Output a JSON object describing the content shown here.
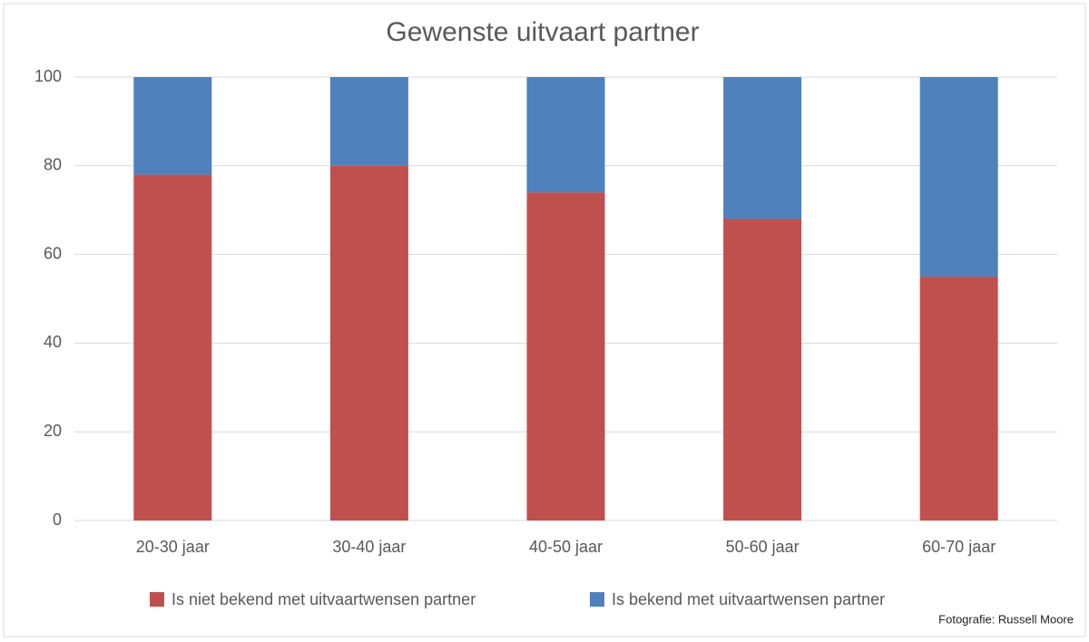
{
  "chart_data": {
    "type": "stacked_bar",
    "title": "Gewenste uitvaart partner",
    "categories": [
      "20-30 jaar",
      "30-40 jaar",
      "40-50 jaar",
      "50-60 jaar",
      "60-70 jaar"
    ],
    "series": [
      {
        "name": "Is niet bekend met uitvaartwensen partner",
        "color": "#c0504d",
        "values": [
          78,
          80,
          74,
          68,
          55
        ]
      },
      {
        "name": "Is bekend met uitvaartwensen partner",
        "color": "#4f81bd",
        "values": [
          22,
          20,
          26,
          32,
          45
        ]
      }
    ],
    "ylim": [
      0,
      100
    ],
    "yticks": [
      0,
      20,
      40,
      60,
      80,
      100
    ],
    "grid": true,
    "legend": "bottom",
    "credit": "Fotografie: Russell Moore"
  }
}
